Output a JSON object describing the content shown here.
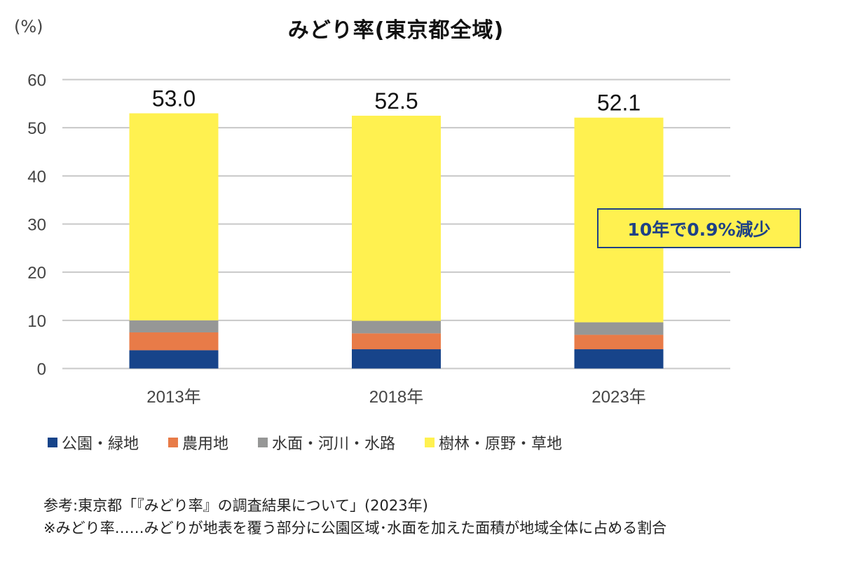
{
  "chart_data": {
    "type": "bar",
    "stacked": true,
    "title": "みどり率(東京都全域)",
    "ylabel": "(%)",
    "xlabel": "",
    "ylim": [
      0,
      60
    ],
    "yticks": [
      0,
      10,
      20,
      30,
      40,
      50,
      60
    ],
    "grid": true,
    "categories": [
      "2013年",
      "2018年",
      "2023年"
    ],
    "series": [
      {
        "name": "公園・緑地",
        "color": "#17448a",
        "values": [
          3.8,
          4.0,
          4.0
        ]
      },
      {
        "name": "農用地",
        "color": "#e87b48",
        "values": [
          3.7,
          3.3,
          3.0
        ]
      },
      {
        "name": "水面・河川・水路",
        "color": "#969796",
        "values": [
          2.5,
          2.6,
          2.6
        ]
      },
      {
        "name": "樹林・原野・草地",
        "color": "#fff150",
        "values": [
          43.0,
          42.6,
          42.5
        ]
      }
    ],
    "totals": [
      "53.0",
      "52.5",
      "52.1"
    ],
    "legend_position": "bottom",
    "annotation": "10年で0.9%減少"
  },
  "notes": {
    "source": "参考:東京都「『みどり率』の調査結果について」(2023年)",
    "definition": "※みどり率……みどりが地表を覆う部分に公園区域･水面を加えた面積が地域全体に占める割合"
  }
}
